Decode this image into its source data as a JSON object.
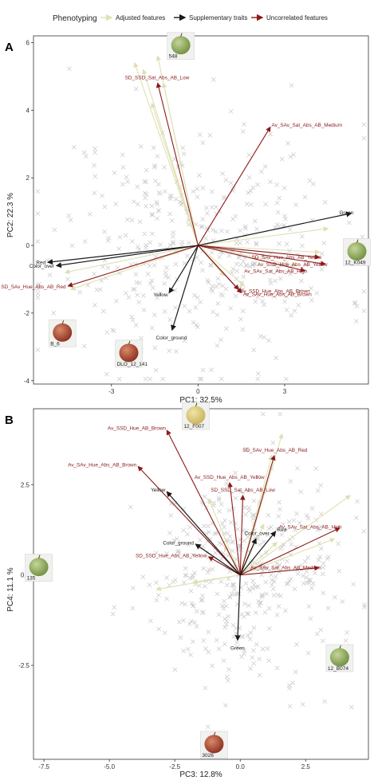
{
  "legend": {
    "title": "Phenotyping",
    "items": [
      {
        "name": "Adjusted features",
        "color": "#dfe0b3"
      },
      {
        "name": "Supplementary traits",
        "color": "#1a1a1a"
      },
      {
        "name": "Uncorrelated features",
        "color": "#8b1a1a"
      }
    ]
  },
  "chart_data": [
    {
      "type": "scatter",
      "panel": "A",
      "xlabel": "PC1: 32.5%",
      "ylabel": "PC2: 22.3 %",
      "xlim": [
        -5.7,
        5.9
      ],
      "ylim": [
        -4.1,
        6.2
      ],
      "x_ticks": [
        -3,
        0,
        3
      ],
      "y_ticks": [
        -4,
        -2,
        0,
        2,
        4,
        6
      ],
      "grid": false,
      "legend_position": "top",
      "seed": 11,
      "point_count": 420,
      "point_spread": {
        "x": 2.5,
        "y": 1.8
      },
      "adjusted_vectors": [
        [
          -2.2,
          5.4
        ],
        [
          -1.9,
          5.2
        ],
        [
          -1.4,
          5.6
        ],
        [
          -1.2,
          4.8
        ],
        [
          -1.6,
          4.2
        ],
        [
          -4.4,
          -1.3
        ],
        [
          -4.6,
          -0.8
        ],
        [
          1.6,
          -1.2
        ],
        [
          4.2,
          -0.2
        ],
        [
          4.5,
          0.5
        ],
        [
          3.4,
          -0.6
        ],
        [
          0.9,
          -0.9
        ]
      ],
      "supplementary": [
        {
          "label": "Green",
          "x": 5.3,
          "y": 0.95
        },
        {
          "label": "Red",
          "x": -5.2,
          "y": -0.5
        },
        {
          "label": "Color_over",
          "x": -4.9,
          "y": -0.6
        },
        {
          "label": "Yellow",
          "x": -1.0,
          "y": -1.4
        },
        {
          "label": "Color_ground",
          "x": -0.9,
          "y": -2.5
        }
      ],
      "uncorrelated": [
        {
          "label": "SD_SSD_Sat_Abs_AB_Low",
          "x": -1.4,
          "y": 4.8
        },
        {
          "label": "Av_SAv_Sat_Abs_AB_Medium",
          "x": 2.5,
          "y": 3.5
        },
        {
          "label": "SD_SAv_Hue_Abs_AB_Yellow",
          "x": 4.2,
          "y": -0.35
        },
        {
          "label": "Av_SSD_Hue_Abs_AB_Yellow",
          "x": 4.4,
          "y": -0.55
        },
        {
          "label": "Av_SAv_Sat_Abs_AB_High",
          "x": 3.7,
          "y": -0.75
        },
        {
          "label": "SD_SAv_Hue_Abs_AB_Red",
          "x": -4.5,
          "y": -1.2
        },
        {
          "label": "Av_SAv_Hue_Abs_AB_Brown",
          "x": 1.5,
          "y": -1.4
        },
        {
          "label": "Av_SSD_Hue_Abs_AB_Brown",
          "x": 1.4,
          "y": -1.3
        }
      ],
      "images": [
        {
          "label": "548",
          "x": -0.6,
          "y": 5.9,
          "type": "green"
        },
        {
          "label": "12_K049",
          "x": 5.5,
          "y": -0.2,
          "type": "green"
        },
        {
          "label": "B_6",
          "x": -4.7,
          "y": -2.6,
          "type": "red"
        },
        {
          "label": "DLO_12_141",
          "x": -2.4,
          "y": -3.2,
          "type": "red"
        }
      ]
    },
    {
      "type": "scatter",
      "panel": "B",
      "xlabel": "PC3: 12.8%",
      "ylabel": "PC4: 11.1 %",
      "xlim": [
        -7.9,
        4.9
      ],
      "ylim": [
        -5.1,
        4.6
      ],
      "x_ticks": [
        -7.5,
        -5.0,
        -2.5,
        0.0,
        2.5
      ],
      "y_ticks": [
        -2.5,
        0.0,
        2.5
      ],
      "grid": false,
      "legend_position": "top",
      "seed": 29,
      "point_count": 400,
      "point_spread": {
        "x": 1.8,
        "y": 1.4
      },
      "adjusted_vectors": [
        [
          1.6,
          3.9
        ],
        [
          1.2,
          3.3
        ],
        [
          3.6,
          1.0
        ],
        [
          4.2,
          2.2
        ],
        [
          -3.2,
          -0.4
        ],
        [
          -1.8,
          -0.2
        ],
        [
          -0.6,
          0.8
        ],
        [
          0.9,
          1.4
        ],
        [
          1.4,
          0.9
        ],
        [
          -1.2,
          2.1
        ]
      ],
      "supplementary": [
        {
          "label": "Yellow",
          "x": -2.8,
          "y": 2.3
        },
        {
          "label": "Color_ground",
          "x": -1.7,
          "y": 0.85
        },
        {
          "label": "Color_over",
          "x": 0.6,
          "y": 1.0
        },
        {
          "label": "Red",
          "x": 1.35,
          "y": 1.2
        },
        {
          "label": "Green",
          "x": -0.1,
          "y": -1.8
        }
      ],
      "uncorrelated": [
        {
          "label": "Av_SSD_Hue_AB_Brown",
          "x": -2.8,
          "y": 4.0
        },
        {
          "label": "Av_SAv_Hue_Abs_AB_Brown",
          "x": -3.9,
          "y": 3.0
        },
        {
          "label": "SD_SAv_Hue_Abs_AB_Red",
          "x": 1.3,
          "y": 3.3
        },
        {
          "label": "Av_SSD_Hue_Abs_AB_Yellow",
          "x": -0.4,
          "y": 2.55
        },
        {
          "label": "SD_SSD_Sat_Abs_AB_Low",
          "x": 0.1,
          "y": 2.2
        },
        {
          "label": "Av_SAv_Sat_Abs_AB_High",
          "x": 3.8,
          "y": 1.3
        },
        {
          "label": "Av_SAv_Sat_Abs_AB_Medium",
          "x": 3.0,
          "y": 0.2
        },
        {
          "label": "SD_SSD_Hue_Abs_AB_Yellow",
          "x": -1.2,
          "y": 0.5
        }
      ],
      "images": [
        {
          "label": "12_F007",
          "x": -1.7,
          "y": 4.4,
          "type": "yellow"
        },
        {
          "label": "135",
          "x": -7.7,
          "y": 0.2,
          "type": "green"
        },
        {
          "label": "12_B074",
          "x": 3.8,
          "y": -2.3,
          "type": "green"
        },
        {
          "label": "3026",
          "x": -1.0,
          "y": -4.7,
          "type": "red"
        }
      ]
    }
  ]
}
